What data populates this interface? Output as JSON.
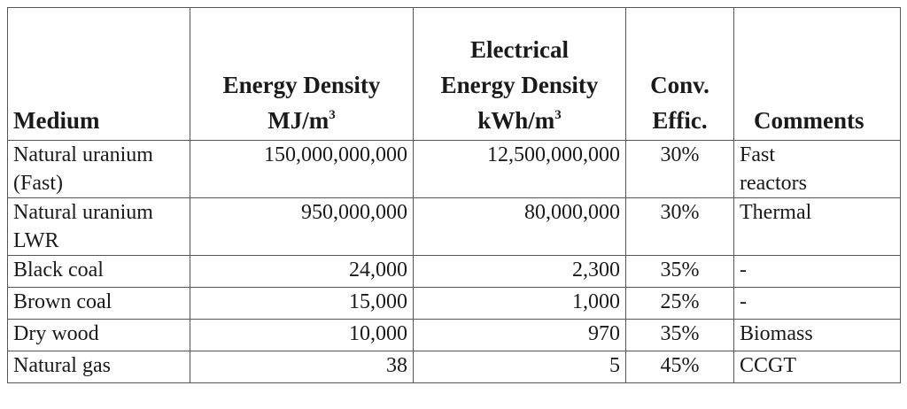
{
  "table": {
    "headers": {
      "medium": "Medium",
      "energy_density": [
        "Energy Density",
        "MJ/m",
        "3"
      ],
      "electrical_energy_density": [
        "Electrical",
        "Energy Density",
        "kWh/m",
        "3"
      ],
      "conv_effic": [
        "Conv.",
        "Effic."
      ],
      "comments": "Comments"
    },
    "rows": [
      {
        "medium": [
          "Natural uranium",
          "(Fast)"
        ],
        "energy_density": "150,000,000,000",
        "electrical": "12,500,000,000",
        "effic": "30%",
        "comments": [
          "Fast",
          "reactors"
        ]
      },
      {
        "medium": [
          "Natural uranium",
          "LWR"
        ],
        "energy_density": "950,000,000",
        "electrical": "80,000,000",
        "effic": "30%",
        "comments": [
          "Thermal",
          ""
        ]
      },
      {
        "medium": [
          "Black coal",
          ""
        ],
        "energy_density": "24,000",
        "electrical": "2,300",
        "effic": "35%",
        "comments": [
          "-",
          ""
        ]
      },
      {
        "medium": [
          "Brown coal",
          ""
        ],
        "energy_density": "15,000",
        "electrical": "1,000",
        "effic": "25%",
        "comments": [
          "-",
          ""
        ]
      },
      {
        "medium": [
          "Dry wood",
          ""
        ],
        "energy_density": "10,000",
        "electrical": "970",
        "effic": "35%",
        "comments": [
          "Biomass",
          ""
        ]
      },
      {
        "medium": [
          "Natural gas",
          ""
        ],
        "energy_density": "38",
        "electrical": "5",
        "effic": "45%",
        "comments": [
          "CCGT",
          ""
        ]
      }
    ]
  }
}
